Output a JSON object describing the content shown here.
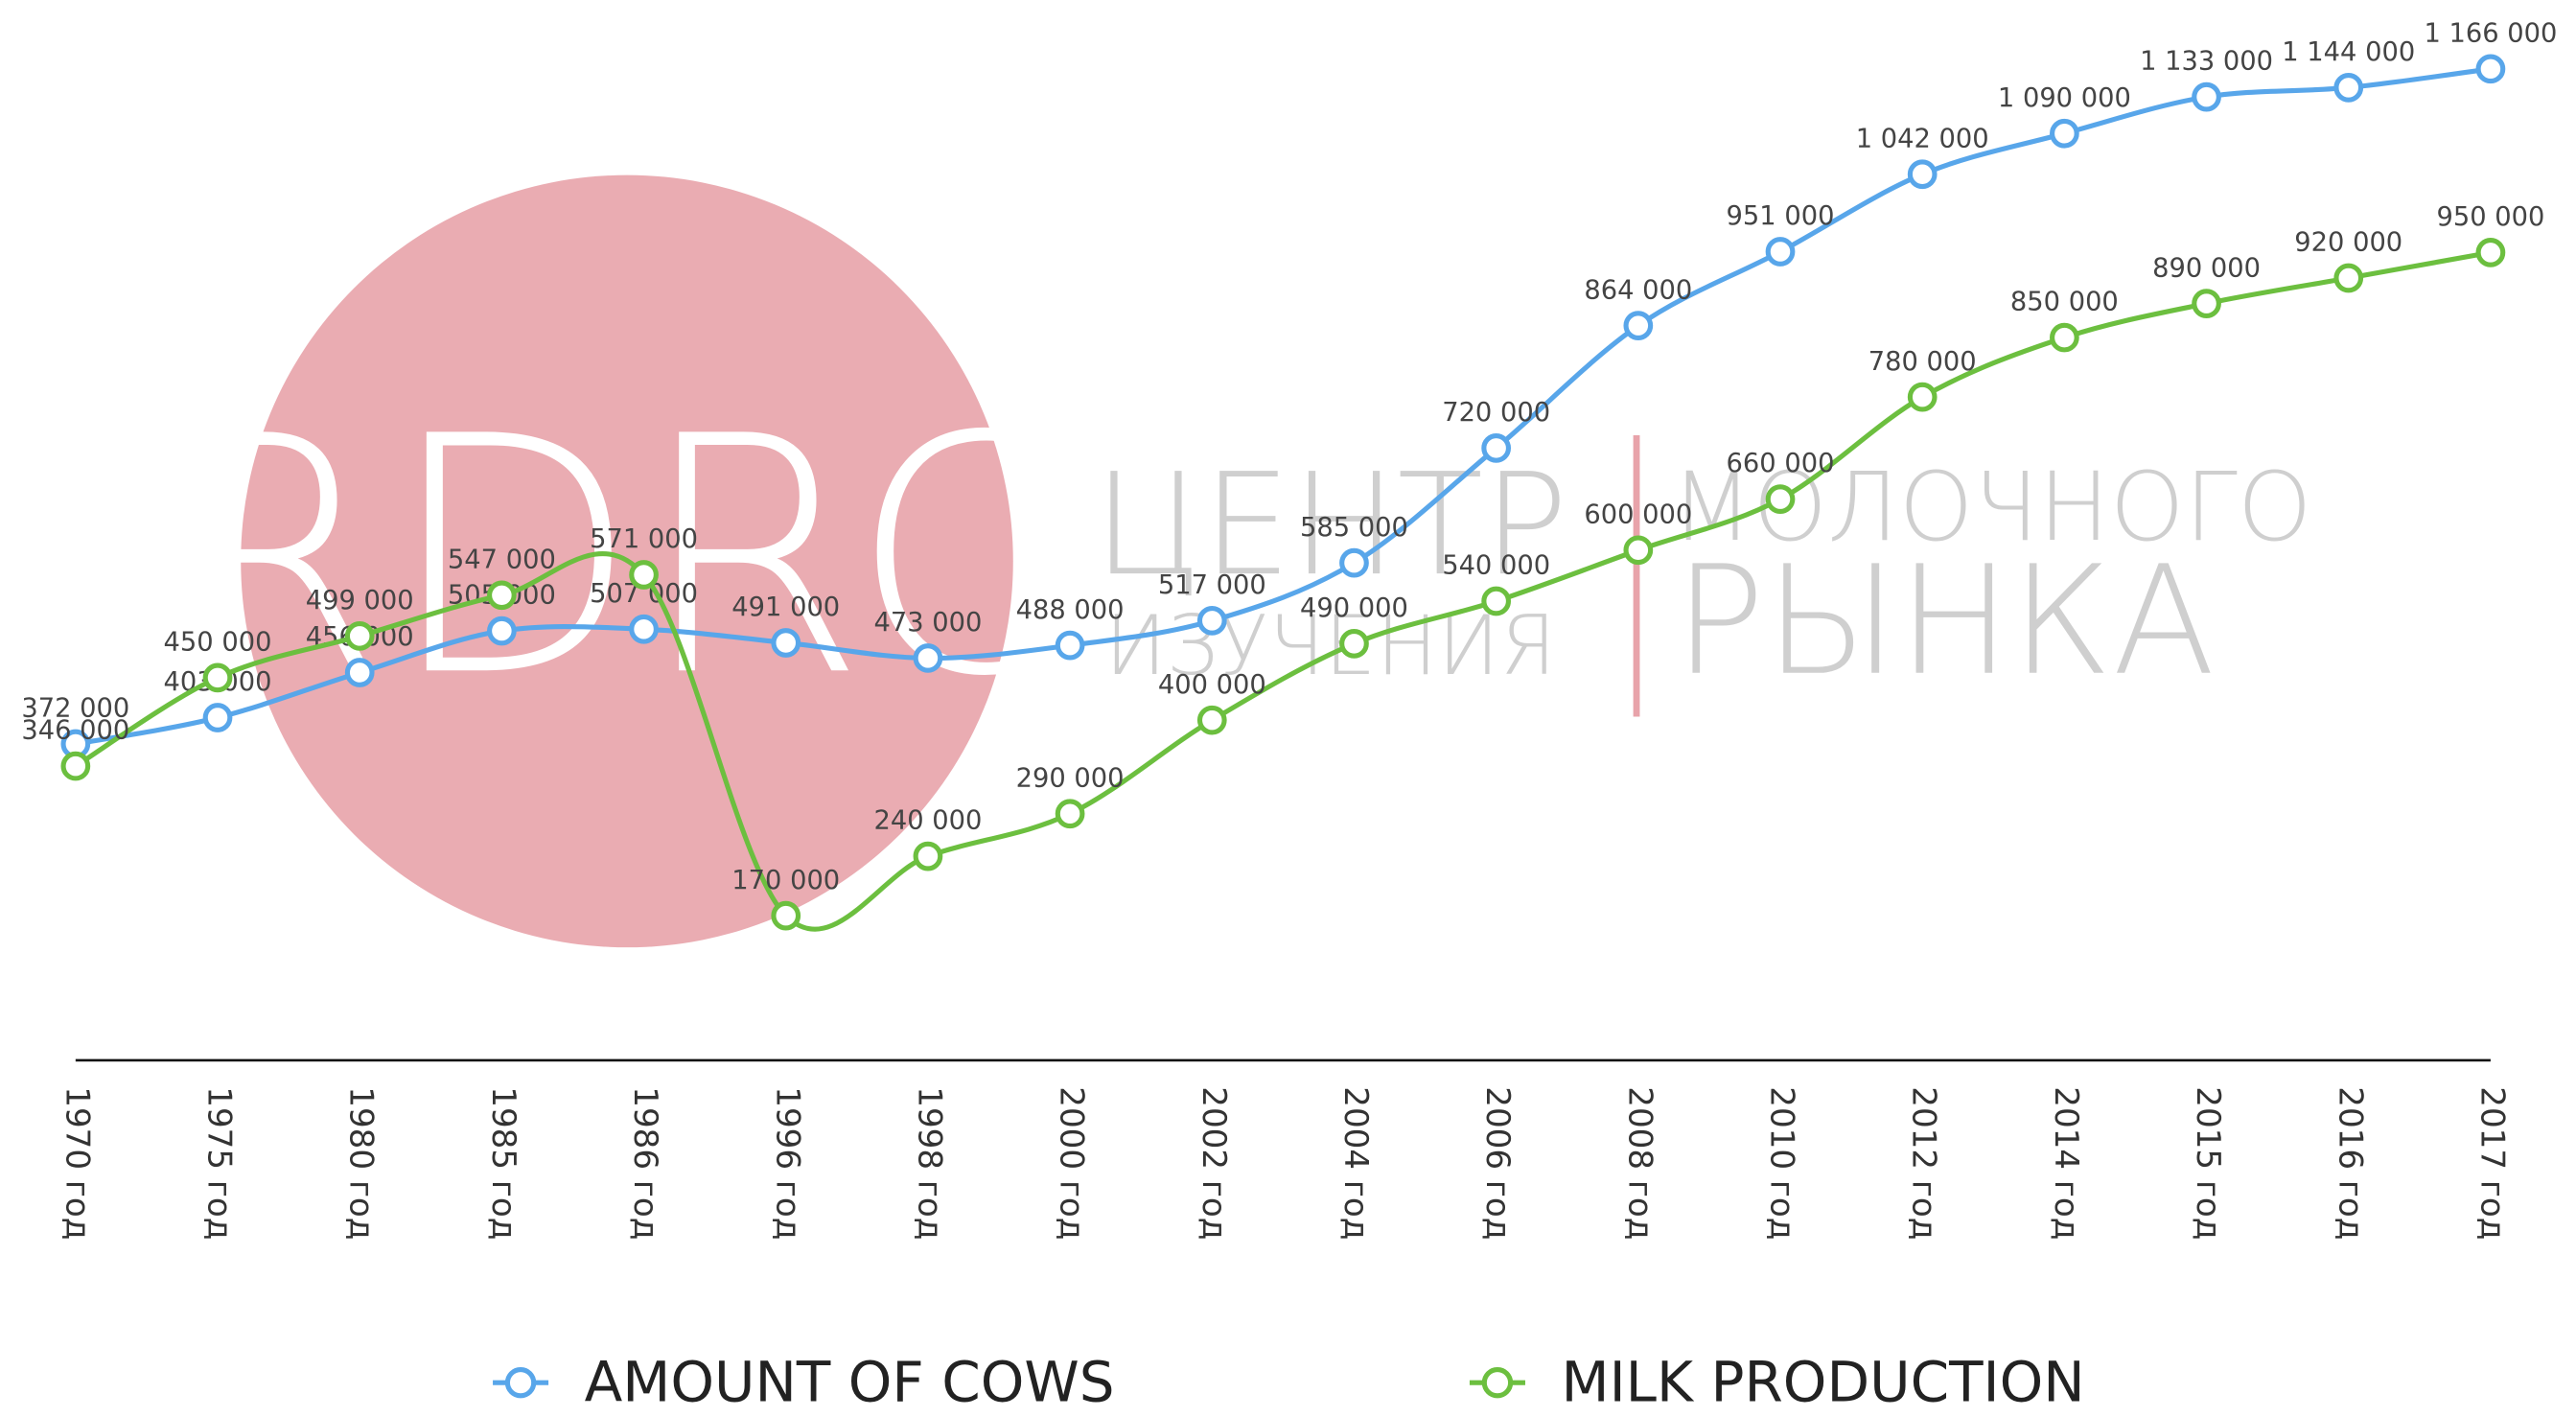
{
  "chart_data": {
    "type": "line",
    "categories": [
      "1970 год",
      "1975 год",
      "1980 год",
      "1985 год",
      "1986 год",
      "1996 год",
      "1998 год",
      "2000 год",
      "2002 год",
      "2004 год",
      "2006 год",
      "2008 год",
      "2010 год",
      "2012 год",
      "2014 год",
      "2015 год",
      "2016 год",
      "2017 год"
    ],
    "series": [
      {
        "name": "AMOUNT OF COWS",
        "color": "#58a6ea",
        "values": [
          372000,
          403000,
          456000,
          505000,
          507000,
          491000,
          473000,
          488000,
          517000,
          585000,
          720000,
          864000,
          951000,
          1042000,
          1090000,
          1133000,
          1144000,
          1166000
        ],
        "value_labels": [
          "372 000",
          "403 000",
          "456 000",
          "505 000",
          "507 000",
          "491 000",
          "473 000",
          "488 000",
          "517 000",
          "585 000",
          "720 000",
          "864 000",
          "951 000",
          "1 042 000",
          "1 090 000",
          "1 133 000",
          "1 144 000",
          "1 166 000"
        ]
      },
      {
        "name": "MILK PRODUCTION",
        "color": "#6cbf3f",
        "values": [
          346000,
          450000,
          499000,
          547000,
          571000,
          170000,
          240000,
          290000,
          400000,
          490000,
          540000,
          600000,
          660000,
          780000,
          850000,
          890000,
          920000,
          950000
        ],
        "value_labels": [
          "346 000",
          "450 000",
          "499 000",
          "547 000",
          "571 000",
          "170 000",
          "240 000",
          "290 000",
          "400 000",
          "490 000",
          "540 000",
          "600 000",
          "660 000",
          "780 000",
          "850 000",
          "890 000",
          "920 000",
          "950 000"
        ]
      }
    ],
    "ylim": [
      0,
      1170000
    ],
    "smooth": true
  },
  "watermark": [
    "RDRC",
    "ЦЕНТР",
    "ИЗУЧЕНИЯ",
    "МОЛОЧНОГО",
    "РЫНКА"
  ]
}
